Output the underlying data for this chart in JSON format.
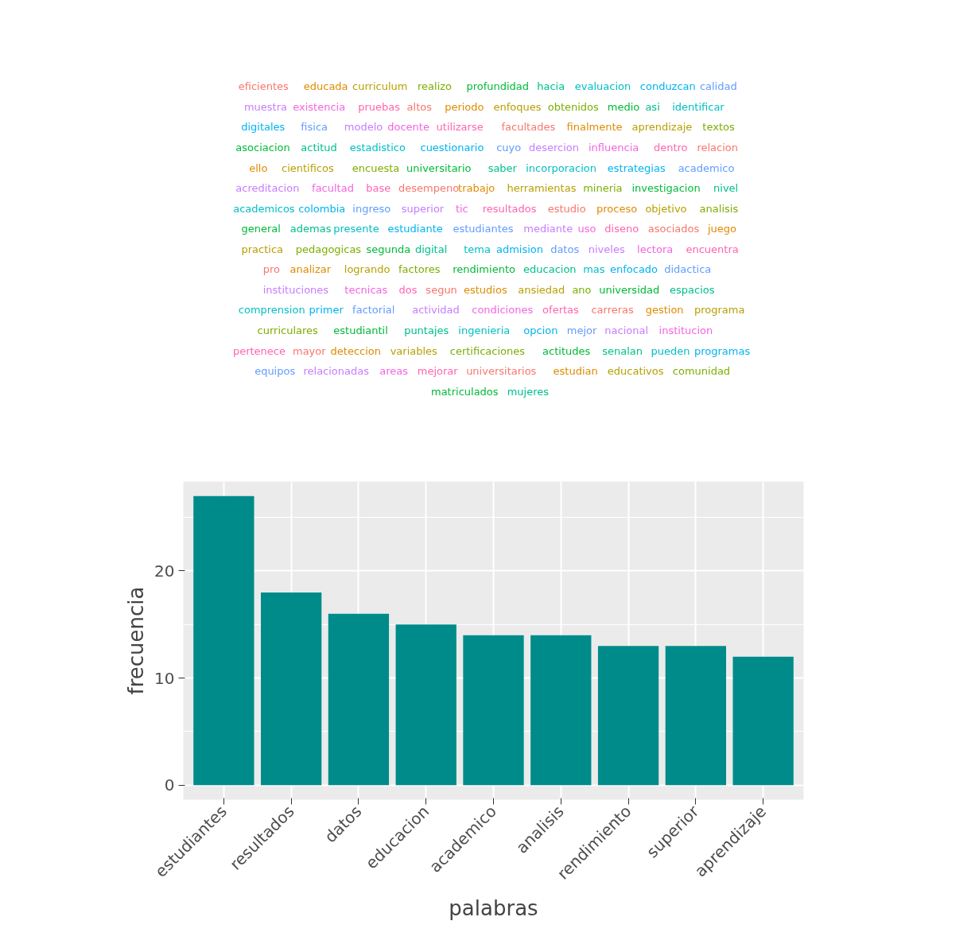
{
  "chart_data": [
    {
      "type": "other",
      "annotations": [
        "eficientes",
        "educada",
        "curriculum",
        "realizo",
        "profundidad",
        "hacia",
        "evaluacion",
        "conduzcan",
        "calidad",
        "muestra",
        "existencia",
        "pruebas",
        "altos",
        "periodo",
        "enfoques",
        "obtenidos",
        "medio",
        "asi",
        "identificar",
        "digitales",
        "fisica",
        "modelo",
        "docente",
        "utilizarse",
        "facultades",
        "finalmente",
        "aprendizaje",
        "textos",
        "asociacion",
        "actitud",
        "estadistico",
        "cuestionario",
        "cuyo",
        "desercion",
        "influencia",
        "dentro",
        "relacion",
        "ello",
        "cientificos",
        "encuesta",
        "universitario",
        "saber",
        "incorporacion",
        "estrategias",
        "academico",
        "acreditacion",
        "facultad",
        "base",
        "desempeno",
        "trabajo",
        "herramientas",
        "mineria",
        "investigacion",
        "nivel",
        "academicos",
        "colombia",
        "ingreso",
        "superior",
        "tic",
        "resultados",
        "estudio",
        "proceso",
        "objetivo",
        "analisis",
        "general",
        "ademas",
        "presente",
        "estudiante",
        "estudiantes",
        "mediante",
        "uso",
        "diseno",
        "asociados",
        "juego",
        "practica",
        "pedagogicas",
        "segunda",
        "digital",
        "tema",
        "admision",
        "datos",
        "niveles",
        "lectora",
        "encuentra",
        "pro",
        "analizar",
        "logrando",
        "factores",
        "rendimiento",
        "educacion",
        "mas",
        "enfocado",
        "didactica",
        "instituciones",
        "tecnicas",
        "dos",
        "segun",
        "estudios",
        "ansiedad",
        "ano",
        "universidad",
        "espacios",
        "comprension",
        "primer",
        "factorial",
        "actividad",
        "condiciones",
        "ofertas",
        "carreras",
        "gestion",
        "programa",
        "curriculares",
        "estudiantil",
        "puntajes",
        "ingenieria",
        "opcion",
        "mejor",
        "nacional",
        "institucion",
        "pertenece",
        "mayor",
        "deteccion",
        "variables",
        "certificaciones",
        "actitudes",
        "senalan",
        "pueden",
        "programas",
        "equipos",
        "relacionadas",
        "areas",
        "mejorar",
        "universitarios",
        "estudian",
        "educativos",
        "comunidad",
        "matriculados",
        "mujeres"
      ]
    },
    {
      "type": "bar",
      "categories": [
        "estudiantes",
        "resultados",
        "datos",
        "educacion",
        "academico",
        "analisis",
        "rendimiento",
        "superior",
        "aprendizaje"
      ],
      "values": [
        27,
        18,
        16,
        15,
        14,
        14,
        13,
        13,
        12
      ],
      "color": "#008b8b",
      "xlabel": "palabras",
      "ylabel": "frecuencia",
      "ylim": [
        -1.35,
        28.35
      ],
      "yticks": [
        0,
        10,
        20
      ],
      "grid": true
    }
  ]
}
